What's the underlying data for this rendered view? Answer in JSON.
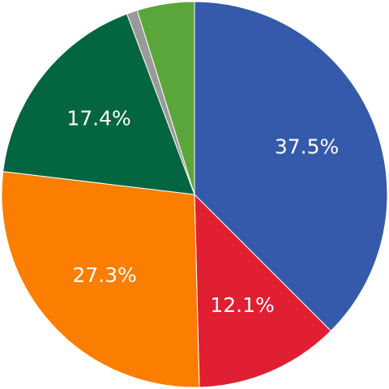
{
  "chart_data": {
    "type": "pie",
    "title": "",
    "start_angle_deg": 0,
    "direction": "clockwise",
    "slices": [
      {
        "value": 37.5,
        "label": "37.5%",
        "color": "#355aab"
      },
      {
        "value": 12.1,
        "label": "12.1%",
        "color": "#e11f32"
      },
      {
        "value": 27.3,
        "label": "27.3%",
        "color": "#fb7e00"
      },
      {
        "value": 17.4,
        "label": "17.4%",
        "color": "#036641"
      },
      {
        "value": 0.9,
        "label": "",
        "color": "#9a9a9a"
      },
      {
        "value": 4.8,
        "label": "",
        "color": "#5ba63a"
      }
    ]
  }
}
